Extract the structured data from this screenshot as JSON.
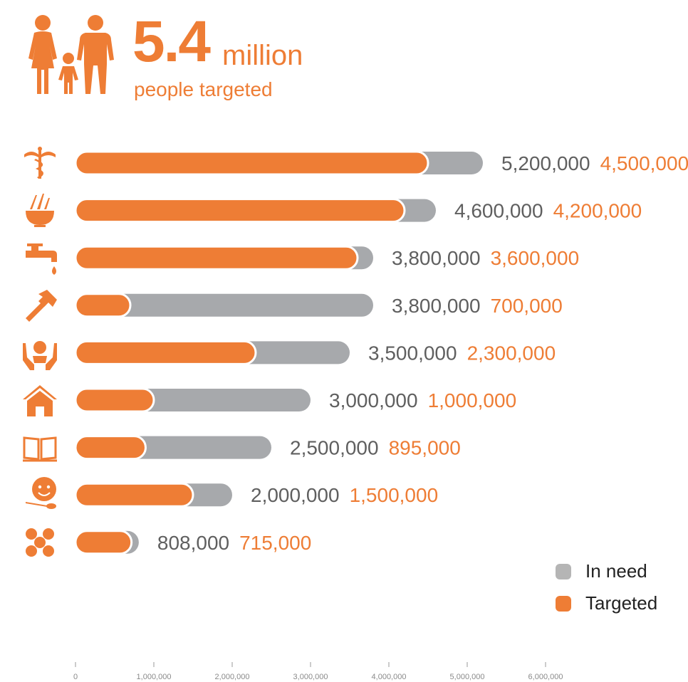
{
  "header": {
    "big_number": "5.4",
    "big_unit": "million",
    "subtitle": "people targeted"
  },
  "colors": {
    "in_need": "#a7a9ac",
    "targeted": "#ee7d35",
    "tick_text": "#8a8a8a",
    "label_need": "#5f5f5f",
    "label_targeted": "#ee7d35"
  },
  "chart_data": {
    "type": "bar",
    "orientation": "horizontal",
    "categories": [
      "health-icon",
      "food-icon",
      "water-icon",
      "recovery-icon",
      "protection-icon",
      "shelter-icon",
      "education-icon",
      "nutrition-icon",
      "other-icon"
    ],
    "series": [
      {
        "name": "In need",
        "values": [
          5200000,
          4600000,
          3800000,
          3800000,
          3500000,
          3000000,
          2500000,
          2000000,
          808000
        ]
      },
      {
        "name": "Targeted",
        "values": [
          4500000,
          4200000,
          3600000,
          700000,
          2300000,
          1000000,
          895000,
          1500000,
          715000
        ]
      }
    ],
    "need_labels": [
      "5,200,000",
      "4,600,000",
      "3,800,000",
      "3,800,000",
      "3,500,000",
      "3,000,000",
      "2,500,000",
      "2,000,000",
      "808,000"
    ],
    "targeted_labels": [
      "4,500,000",
      "4,200,000",
      "3,600,000",
      "700,000",
      "2,300,000",
      "1,000,000",
      "895,000",
      "1,500,000",
      "715,000"
    ],
    "xticks": [
      0,
      1000000,
      2000000,
      3000000,
      4000000,
      5000000,
      6000000
    ],
    "xtick_labels": [
      "0",
      "1,000,000",
      "2,000,000",
      "3,000,000",
      "4,000,000",
      "5,000,000",
      "6,000,000"
    ],
    "xlim": [
      0,
      6000000
    ],
    "grid": false,
    "legend_position": "bottom-right"
  },
  "legend": {
    "items": [
      {
        "label": "In need"
      },
      {
        "label": "Targeted"
      }
    ]
  }
}
